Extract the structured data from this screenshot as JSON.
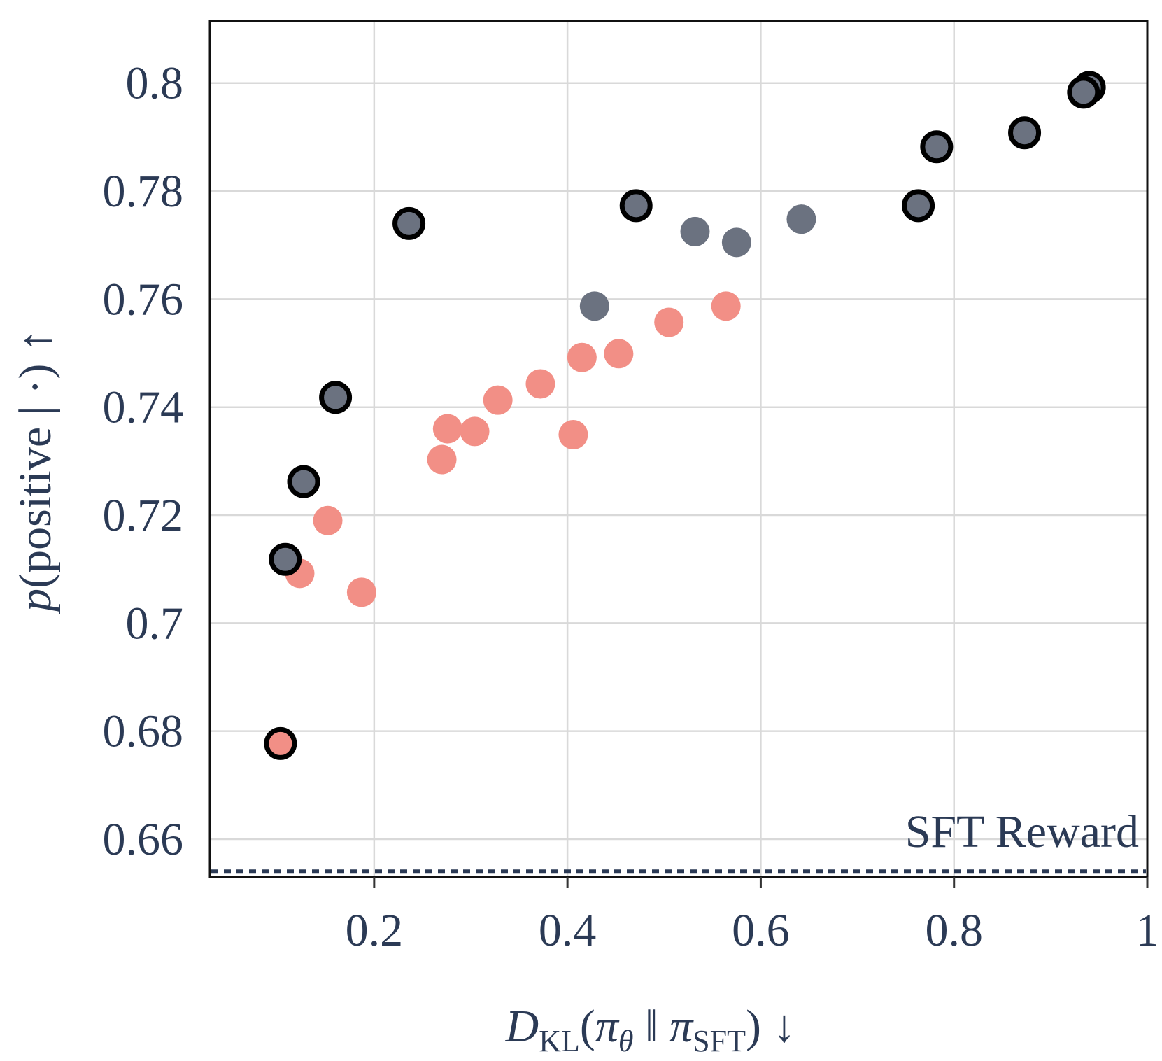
{
  "chart_data": {
    "type": "scatter",
    "title": "",
    "xlabel": "D_KL(π_θ || π_SFT) ↓",
    "ylabel": "p(positive | ·) ↑",
    "xlim": [
      0.03,
      1.0
    ],
    "ylim": [
      0.653,
      0.8115
    ],
    "grid": true,
    "x_ticks": [
      0.2,
      0.4,
      0.6,
      0.8,
      1.0
    ],
    "x_tick_labels": [
      "0.2",
      "0.4",
      "0.6",
      "0.8",
      "1"
    ],
    "y_ticks": [
      0.66,
      0.68,
      0.7,
      0.72,
      0.74,
      0.76,
      0.78,
      0.8
    ],
    "y_tick_labels": [
      "0.66",
      "0.68",
      "0.7",
      "0.72",
      "0.74",
      "0.76",
      "0.78",
      "0.8"
    ],
    "reference_line": {
      "label": "SFT Reward",
      "y": 0.654,
      "style": "dotted",
      "color": "#2b3a55"
    },
    "series": [
      {
        "name": "gray",
        "color": "#6b7280",
        "points": [
          {
            "x": 0.108,
            "y": 0.7118,
            "outlined": true
          },
          {
            "x": 0.127,
            "y": 0.7262,
            "outlined": true
          },
          {
            "x": 0.16,
            "y": 0.7418,
            "outlined": true
          },
          {
            "x": 0.236,
            "y": 0.774,
            "outlined": true
          },
          {
            "x": 0.428,
            "y": 0.7587,
            "outlined": false
          },
          {
            "x": 0.471,
            "y": 0.7773,
            "outlined": true
          },
          {
            "x": 0.532,
            "y": 0.7725,
            "outlined": false
          },
          {
            "x": 0.575,
            "y": 0.7705,
            "outlined": false
          },
          {
            "x": 0.642,
            "y": 0.7748,
            "outlined": false
          },
          {
            "x": 0.763,
            "y": 0.7773,
            "outlined": true
          },
          {
            "x": 0.782,
            "y": 0.7882,
            "outlined": true
          },
          {
            "x": 0.873,
            "y": 0.7908,
            "outlined": true
          },
          {
            "x": 0.94,
            "y": 0.7992,
            "outlined": true
          },
          {
            "x": 0.934,
            "y": 0.7983,
            "outlined": true
          }
        ]
      },
      {
        "name": "salmon",
        "color": "#f28f86",
        "points": [
          {
            "x": 0.103,
            "y": 0.6777,
            "outlined": true
          },
          {
            "x": 0.123,
            "y": 0.7092,
            "outlined": false
          },
          {
            "x": 0.152,
            "y": 0.719,
            "outlined": false
          },
          {
            "x": 0.187,
            "y": 0.7057,
            "outlined": false
          },
          {
            "x": 0.27,
            "y": 0.7303,
            "outlined": false
          },
          {
            "x": 0.276,
            "y": 0.736,
            "outlined": false
          },
          {
            "x": 0.304,
            "y": 0.7355,
            "outlined": false
          },
          {
            "x": 0.328,
            "y": 0.7413,
            "outlined": false
          },
          {
            "x": 0.372,
            "y": 0.7443,
            "outlined": false
          },
          {
            "x": 0.406,
            "y": 0.7349,
            "outlined": false
          },
          {
            "x": 0.415,
            "y": 0.7492,
            "outlined": false
          },
          {
            "x": 0.453,
            "y": 0.7499,
            "outlined": false
          },
          {
            "x": 0.505,
            "y": 0.7557,
            "outlined": false
          },
          {
            "x": 0.564,
            "y": 0.7587,
            "outlined": false
          }
        ]
      }
    ]
  }
}
